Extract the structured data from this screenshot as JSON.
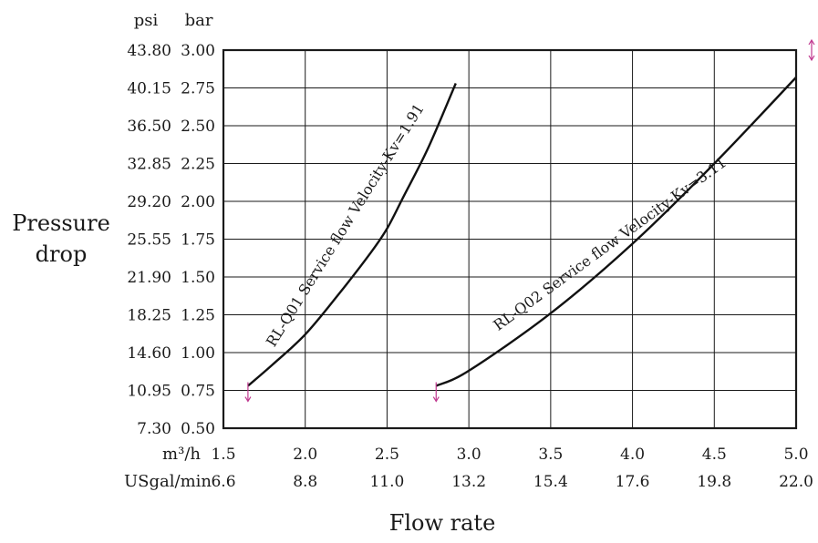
{
  "chart_data": {
    "type": "line",
    "xlabel": "Flow rate",
    "ylabel": [
      "Pressure",
      "drop"
    ],
    "y_units": {
      "primary": "psi",
      "secondary": "bar"
    },
    "x_units": {
      "primary": "m³/h",
      "secondary": "USgal/min"
    },
    "xlim": [
      1.5,
      5.0
    ],
    "ylim": [
      0.5,
      3.0
    ],
    "x_ticks": [
      "1.5",
      "2.0",
      "2.5",
      "3.0",
      "3.5",
      "4.0",
      "4.5",
      "5.0"
    ],
    "x_ticks_secondary": [
      "6.6",
      "8.8",
      "11.0",
      "13.2",
      "15.4",
      "17.6",
      "19.8",
      "22.0"
    ],
    "y_ticks_bar": [
      "0.50",
      "0.75",
      "1.00",
      "1.25",
      "1.50",
      "1.75",
      "2.00",
      "2.25",
      "2.50",
      "2.75",
      "3.00"
    ],
    "y_ticks_psi": [
      "7.30",
      "10.95",
      "14.60",
      "18.25",
      "21.90",
      "25.55",
      "29.20",
      "32.85",
      "36.50",
      "40.15",
      "43.80"
    ],
    "grid": true,
    "accent_color": "#c0388f",
    "series": [
      {
        "name": "RL-Q01 Service flow Velocity-Kv=1.91",
        "x": [
          1.65,
          1.8,
          2.0,
          2.2,
          2.4,
          2.5,
          2.6,
          2.75,
          2.92
        ],
        "y": [
          0.78,
          0.92,
          1.12,
          1.38,
          1.66,
          1.82,
          2.03,
          2.35,
          2.78
        ]
      },
      {
        "name": "RL-Q02 Service flow Velocity-Kv=3.11",
        "x": [
          2.8,
          3.0,
          3.5,
          4.0,
          4.5,
          5.0
        ],
        "y": [
          0.78,
          0.88,
          1.26,
          1.72,
          2.25,
          2.82
        ]
      }
    ]
  }
}
